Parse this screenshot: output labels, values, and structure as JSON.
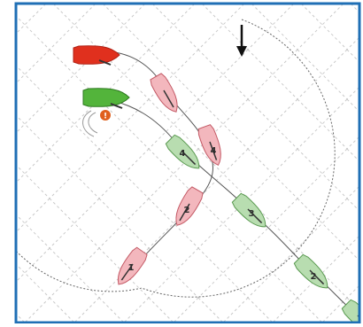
{
  "diagram": {
    "colors": {
      "frame": "#1f6fb5",
      "grid": "#c9c9c9",
      "red_boat_fill": "#f3b7bd",
      "red_boat_stroke": "#c45a66",
      "green_boat_fill": "#b8ddb0",
      "green_boat_stroke": "#5a9a50",
      "red_lead_fill": "#e0301e",
      "green_lead_fill": "#53b43b",
      "marker": "#e0601e"
    },
    "wind_arrow": {
      "icon": "arrow-down-icon"
    },
    "caution_marker": {
      "label": "!"
    },
    "red_boats": [
      {
        "label": "1"
      },
      {
        "label": "2"
      },
      {
        "label": "3"
      },
      {
        "label": "4"
      },
      {
        "label": ""
      }
    ],
    "green_boats": [
      {
        "label": "1"
      },
      {
        "label": "2"
      },
      {
        "label": "3"
      },
      {
        "label": "4"
      },
      {
        "label": ""
      }
    ]
  }
}
